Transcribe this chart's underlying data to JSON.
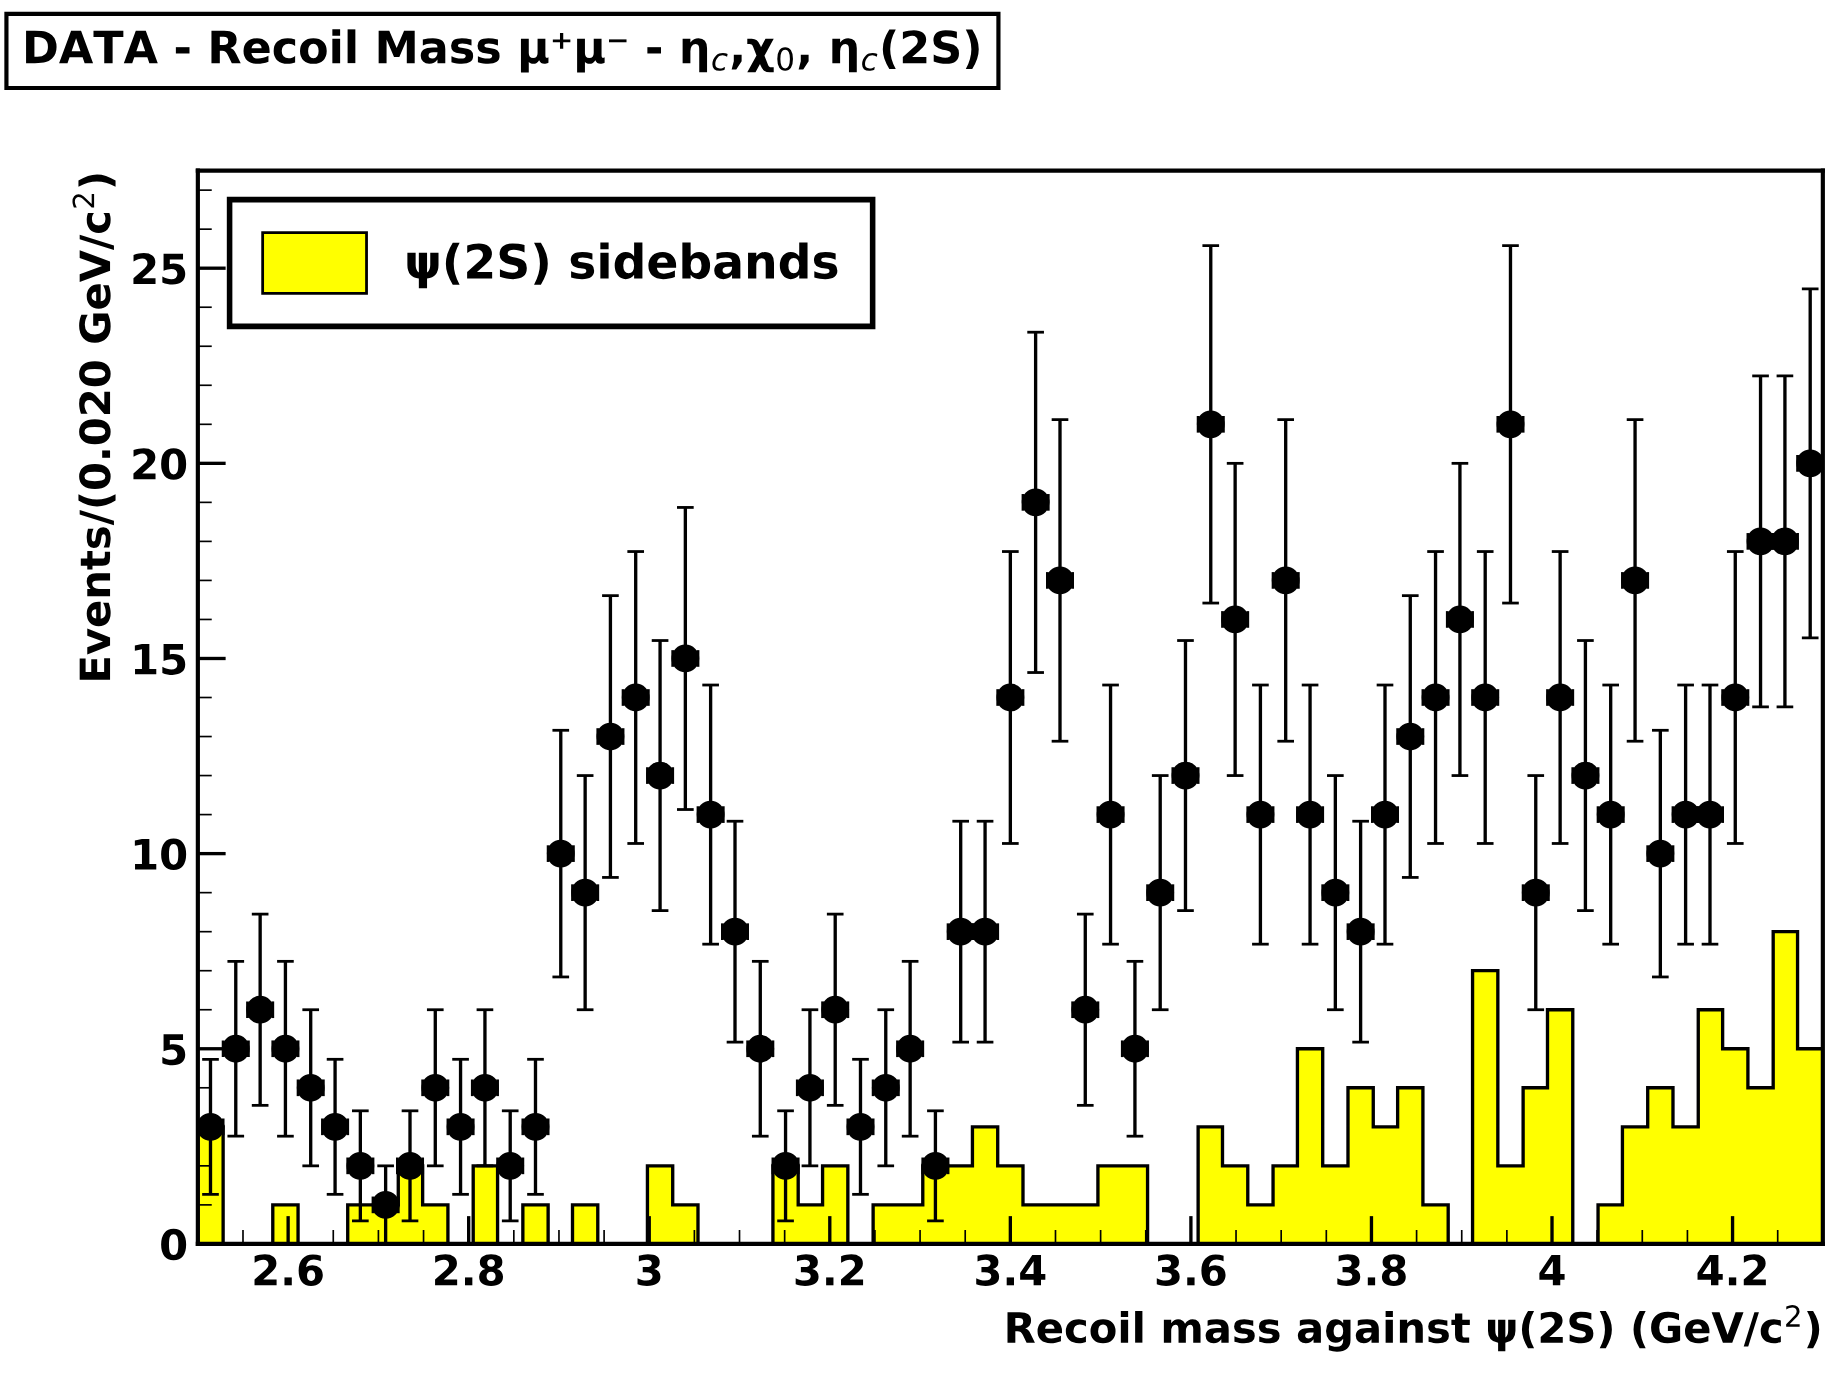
{
  "chart_data": {
    "type": "histogram",
    "title": "DATA - Recoil Mass μ⁺μ⁻ - η$_{c}$,χ$_{0}$, η$_{c}$(2S)",
    "xlabel": "Recoil mass against ψ(2S) (GeV/c$^{2}$)",
    "ylabel": "Events/(0.020 GeV/c$^{2}$)",
    "bins": [
      2.5,
      2.528,
      2.555,
      2.583,
      2.611,
      2.638,
      2.666,
      2.694,
      2.722,
      2.749,
      2.777,
      2.805,
      2.832,
      2.86,
      2.888,
      2.915,
      2.943,
      2.971,
      2.998,
      3.026,
      3.054,
      3.082,
      3.109,
      3.137,
      3.165,
      3.192,
      3.22,
      3.248,
      3.275,
      3.303,
      3.331,
      3.358,
      3.386,
      3.414,
      3.442,
      3.469,
      3.497,
      3.525,
      3.552,
      3.58,
      3.608,
      3.635,
      3.663,
      3.691,
      3.718,
      3.746,
      3.774,
      3.802,
      3.829,
      3.857,
      3.885,
      3.912,
      3.94,
      3.968,
      3.995,
      4.023,
      4.051,
      4.078,
      4.106,
      4.134,
      4.162,
      4.189,
      4.217,
      4.245,
      4.272,
      4.3
    ],
    "series": [
      {
        "name": "ψ(2S) sidebands",
        "color": "#ffff00",
        "values": [
          3,
          0,
          0,
          1,
          0,
          0,
          1,
          1,
          2,
          1,
          0,
          2,
          0,
          1,
          0,
          1,
          0,
          0,
          2,
          1,
          0,
          0,
          0,
          2,
          1,
          2,
          0,
          1,
          1,
          2,
          2,
          3,
          2,
          1,
          1,
          1,
          2,
          2,
          0,
          0,
          3,
          2,
          1,
          2,
          5,
          2,
          4,
          3,
          4,
          1,
          0,
          7,
          2,
          4,
          6,
          0,
          1,
          3,
          4,
          3,
          6,
          5,
          4,
          8,
          5
        ]
      },
      {
        "type": "scatter",
        "color": "#000000",
        "marker": "circle",
        "x": [
          2.514,
          2.542,
          2.569,
          2.597,
          2.625,
          2.652,
          2.68,
          2.708,
          2.735,
          2.763,
          2.791,
          2.818,
          2.846,
          2.874,
          2.902,
          2.929,
          2.957,
          2.985,
          3.012,
          3.04,
          3.068,
          3.095,
          3.123,
          3.151,
          3.178,
          3.206,
          3.234,
          3.262,
          3.289,
          3.317,
          3.345,
          3.372,
          3.4,
          3.428,
          3.455,
          3.483,
          3.511,
          3.538,
          3.566,
          3.594,
          3.622,
          3.649,
          3.677,
          3.705,
          3.732,
          3.76,
          3.788,
          3.815,
          3.843,
          3.871,
          3.898,
          3.926,
          3.954,
          3.982,
          4.009,
          4.037,
          4.065,
          4.092,
          4.12,
          4.148,
          4.175,
          4.203,
          4.231,
          4.258,
          4.286
        ],
        "values": [
          3,
          5,
          6,
          5,
          4,
          3,
          2,
          1,
          2,
          4,
          3,
          4,
          2,
          3,
          10,
          9,
          13,
          14,
          12,
          15,
          11,
          8,
          5,
          2,
          4,
          6,
          3,
          4,
          5,
          2,
          8,
          8,
          14,
          19,
          17,
          6,
          11,
          5,
          9,
          12,
          21,
          16,
          11,
          17,
          11,
          9,
          8,
          11,
          13,
          14,
          16,
          14,
          21,
          9,
          14,
          12,
          11,
          17,
          10,
          11,
          11,
          14,
          18,
          18,
          20
        ],
        "errors": [
          1.73,
          2.24,
          2.45,
          2.24,
          2,
          1.73,
          1.41,
          1,
          1.41,
          2,
          1.73,
          2,
          1.41,
          1.73,
          3.16,
          3,
          3.61,
          3.74,
          3.46,
          3.87,
          3.32,
          2.83,
          2.24,
          1.41,
          2,
          2.45,
          1.73,
          2,
          2.24,
          1.41,
          2.83,
          2.83,
          3.74,
          4.36,
          4.12,
          2.45,
          3.32,
          2.24,
          3,
          3.46,
          4.58,
          4,
          3.32,
          4.12,
          3.32,
          3,
          2.83,
          3.32,
          3.61,
          3.74,
          4,
          3.74,
          4.58,
          3,
          3.74,
          3.46,
          3.32,
          4.12,
          3.16,
          3.32,
          3.32,
          3.74,
          4.24,
          4.24,
          4.47
        ],
        "xerrors": [
          0.014,
          0.014,
          0.014,
          0.014,
          0.014,
          0.014,
          0.014,
          0.014,
          0.014,
          0.014,
          0.014,
          0.014,
          0.014,
          0.014,
          0.014,
          0.014,
          0.014,
          0.014,
          0.014,
          0.014,
          0.014,
          0.014,
          0.014,
          0.014,
          0.014,
          0.014,
          0.014,
          0.014,
          0.014,
          0.014,
          0.014,
          0.014,
          0.014,
          0.014,
          0.014,
          0.014,
          0.014,
          0.014,
          0.014,
          0.014,
          0.014,
          0.014,
          0.014,
          0.014,
          0.014,
          0.014,
          0.014,
          0.014,
          0.014,
          0.014,
          0.014,
          0.014,
          0.014,
          0.014,
          0.014,
          0.014,
          0.014,
          0.014,
          0.014,
          0.014,
          0.014,
          0.014,
          0.014,
          0.014,
          0.014
        ]
      }
    ],
    "xlim": [
      2.5,
      4.3
    ],
    "xticks": [
      2.6,
      2.8,
      3,
      3.2,
      3.4,
      3.6,
      3.8,
      4,
      4.2
    ],
    "ylim": [
      0,
      27.5
    ],
    "yticks": [
      0,
      5,
      10,
      15,
      20,
      25
    ],
    "grid": false,
    "legend": "top left"
  }
}
